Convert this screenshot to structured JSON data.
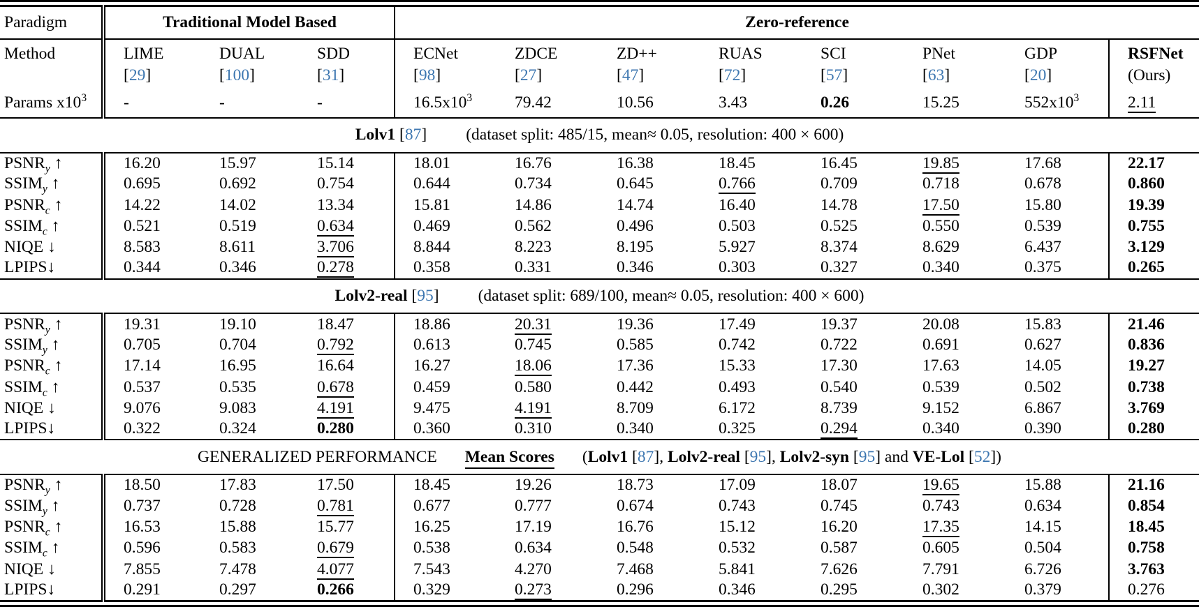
{
  "colors": {
    "citation": "#3C76B0",
    "text": "#000000",
    "background": "#FFFFFF"
  },
  "table": {
    "paradigm_label": "Paradigm",
    "method_label": "Method",
    "params_label": {
      "text": "Params x10",
      "sup": "3"
    },
    "paradigm_groups": [
      {
        "label": "Traditional Model Based",
        "span": 3
      },
      {
        "label": "Zero-reference",
        "span": 8
      }
    ],
    "methods": [
      {
        "name": "LIME",
        "ref": "29",
        "params": "-"
      },
      {
        "name": "DUAL",
        "ref": "100",
        "params": "-"
      },
      {
        "name": "SDD",
        "ref": "31",
        "params": "-"
      },
      {
        "name": "ECNet",
        "ref": "98",
        "params": {
          "text": "16.5x10",
          "sup": "3"
        }
      },
      {
        "name": "ZDCE",
        "ref": "27",
        "params": "79.42"
      },
      {
        "name": "ZD++",
        "ref": "47",
        "params": "10.56"
      },
      {
        "name": "RUAS",
        "ref": "72",
        "params": "3.43"
      },
      {
        "name": "SCI",
        "ref": "57",
        "params": "0.26",
        "params_style": "bold"
      },
      {
        "name": "PNet",
        "ref": "63",
        "params": "15.25"
      },
      {
        "name": "GDP",
        "ref": "20",
        "params": {
          "text": "552x10",
          "sup": "3"
        }
      },
      {
        "name": "RSFNet",
        "note": "(Ours)",
        "bold_name": true,
        "params": "2.11",
        "params_style": "underline"
      }
    ],
    "metrics": [
      {
        "name": "PSNR",
        "sub": "y",
        "arrow": " ↑"
      },
      {
        "name": "SSIM",
        "sub": "y",
        "arrow": " ↑"
      },
      {
        "name": "PSNR",
        "sub": "c",
        "arrow": " ↑"
      },
      {
        "name": "SSIM",
        "sub": "c",
        "arrow": " ↑"
      },
      {
        "name": "NIQE",
        "sub": "",
        "arrow": " ↓"
      },
      {
        "name": "LPIPS",
        "sub": "",
        "arrow": "↓"
      }
    ],
    "sections": [
      {
        "header": {
          "title": "Lolv1",
          "ref": "87",
          "info": "(dataset split: 485/15, mean≈ 0.05, resolution: 400 × 600)"
        },
        "rows": [
          {
            "values": [
              "16.20",
              "15.97",
              "15.14",
              "18.01",
              "16.76",
              "16.38",
              "18.45",
              "16.45",
              "19.85",
              "17.68",
              "22.17"
            ],
            "underline": [
              8
            ],
            "bold": [
              10
            ]
          },
          {
            "values": [
              "0.695",
              "0.692",
              "0.754",
              "0.644",
              "0.734",
              "0.645",
              "0.766",
              "0.709",
              "0.718",
              "0.678",
              "0.860"
            ],
            "underline": [
              6
            ],
            "bold": [
              10
            ]
          },
          {
            "values": [
              "14.22",
              "14.02",
              "13.34",
              "15.81",
              "14.86",
              "14.74",
              "16.40",
              "14.78",
              "17.50",
              "15.80",
              "19.39"
            ],
            "underline": [
              8
            ],
            "bold": [
              10
            ]
          },
          {
            "values": [
              "0.521",
              "0.519",
              "0.634",
              "0.469",
              "0.562",
              "0.496",
              "0.503",
              "0.525",
              "0.550",
              "0.539",
              "0.755"
            ],
            "underline": [
              2
            ],
            "bold": [
              10
            ]
          },
          {
            "values": [
              "8.583",
              "8.611",
              "3.706",
              "8.844",
              "8.223",
              "8.195",
              "5.927",
              "8.374",
              "8.629",
              "6.437",
              "3.129"
            ],
            "underline": [
              2
            ],
            "bold": [
              10
            ]
          },
          {
            "values": [
              "0.344",
              "0.346",
              "0.278",
              "0.358",
              "0.331",
              "0.346",
              "0.303",
              "0.327",
              "0.340",
              "0.375",
              "0.265"
            ],
            "underline": [
              2
            ],
            "bold": [
              10
            ]
          }
        ]
      },
      {
        "header": {
          "title": "Lolv2-real",
          "ref": "95",
          "info": "(dataset split: 689/100, mean≈ 0.05, resolution: 400 × 600)"
        },
        "rows": [
          {
            "values": [
              "19.31",
              "19.10",
              "18.47",
              "18.86",
              "20.31",
              "19.36",
              "17.49",
              "19.37",
              "20.08",
              "15.83",
              "21.46"
            ],
            "underline": [
              4
            ],
            "bold": [
              10
            ]
          },
          {
            "values": [
              "0.705",
              "0.704",
              "0.792",
              "0.613",
              "0.745",
              "0.585",
              "0.742",
              "0.722",
              "0.691",
              "0.627",
              "0.836"
            ],
            "underline": [
              2
            ],
            "bold": [
              10
            ]
          },
          {
            "values": [
              "17.14",
              "16.95",
              "16.64",
              "16.27",
              "18.06",
              "17.36",
              "15.33",
              "17.30",
              "17.63",
              "14.05",
              "19.27"
            ],
            "underline": [
              4
            ],
            "bold": [
              10
            ]
          },
          {
            "values": [
              "0.537",
              "0.535",
              "0.678",
              "0.459",
              "0.580",
              "0.442",
              "0.493",
              "0.540",
              "0.539",
              "0.502",
              "0.738"
            ],
            "underline": [
              2
            ],
            "bold": [
              10
            ]
          },
          {
            "values": [
              "9.076",
              "9.083",
              "4.191",
              "9.475",
              "4.191",
              "8.709",
              "6.172",
              "8.739",
              "9.152",
              "6.867",
              "3.769"
            ],
            "underline": [
              2,
              4
            ],
            "bold": [
              10
            ]
          },
          {
            "values": [
              "0.322",
              "0.324",
              "0.280",
              "0.360",
              "0.310",
              "0.340",
              "0.325",
              "0.294",
              "0.340",
              "0.390",
              "0.280"
            ],
            "underline": [
              7
            ],
            "bold": [
              2,
              10
            ]
          }
        ]
      },
      {
        "header_special": {
          "pre": "GENERALIZED PERFORMANCE",
          "mid": "Mean Scores",
          "open": "(",
          "datasets": [
            {
              "name": "Lolv1",
              "ref": "87",
              "sep": ", "
            },
            {
              "name": "Lolv2-real",
              "ref": "95",
              "sep": ", "
            },
            {
              "name": "Lolv2-syn",
              "ref": "95",
              "sep": " and "
            },
            {
              "name": "VE-Lol",
              "ref": "52",
              "sep": ")"
            }
          ]
        },
        "rows": [
          {
            "values": [
              "18.50",
              "17.83",
              "17.50",
              "18.45",
              "19.26",
              "18.73",
              "17.09",
              "18.07",
              "19.65",
              "15.88",
              "21.16"
            ],
            "underline": [
              8
            ],
            "bold": [
              10
            ]
          },
          {
            "values": [
              "0.737",
              "0.728",
              "0.781",
              "0.677",
              "0.777",
              "0.674",
              "0.743",
              "0.745",
              "0.743",
              "0.634",
              "0.854"
            ],
            "underline": [
              2
            ],
            "bold": [
              10
            ]
          },
          {
            "values": [
              "16.53",
              "15.88",
              "15.77",
              "16.25",
              "17.19",
              "16.76",
              "15.12",
              "16.20",
              "17.35",
              "14.15",
              "18.45"
            ],
            "underline": [
              8
            ],
            "bold": [
              10
            ]
          },
          {
            "values": [
              "0.596",
              "0.583",
              "0.679",
              "0.538",
              "0.634",
              "0.548",
              "0.532",
              "0.587",
              "0.605",
              "0.504",
              "0.758"
            ],
            "underline": [
              2
            ],
            "bold": [
              10
            ]
          },
          {
            "values": [
              "7.855",
              "7.478",
              "4.077",
              "7.543",
              "4.270",
              "7.468",
              "5.841",
              "7.626",
              "7.791",
              "6.726",
              "3.763"
            ],
            "underline": [
              2
            ],
            "bold": [
              10
            ]
          },
          {
            "values": [
              "0.291",
              "0.297",
              "0.266",
              "0.329",
              "0.273",
              "0.296",
              "0.346",
              "0.295",
              "0.302",
              "0.379",
              "0.276"
            ],
            "underline": [
              4
            ],
            "bold": [
              2
            ]
          }
        ]
      }
    ]
  }
}
